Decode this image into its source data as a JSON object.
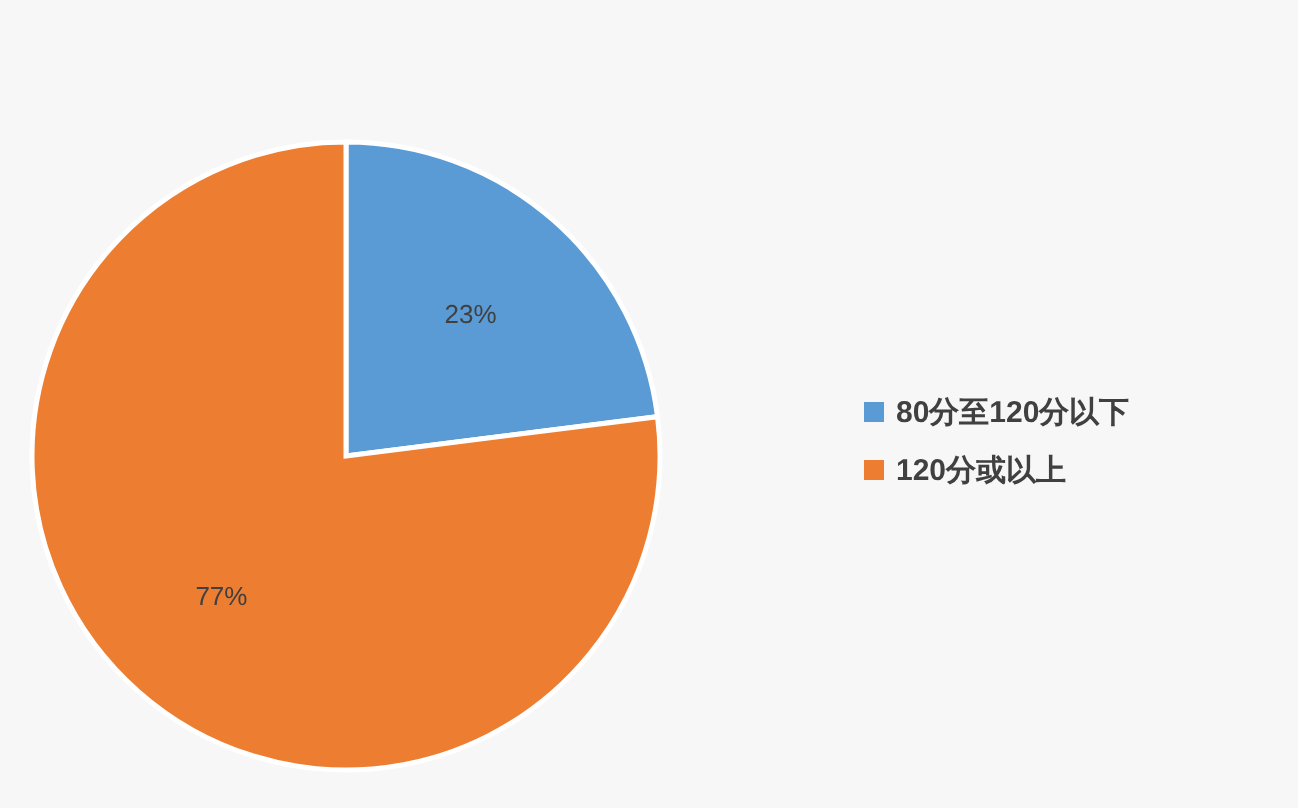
{
  "chart_data": {
    "type": "pie",
    "categories": [
      "80分至120分以下",
      "120分或以上"
    ],
    "values": [
      23,
      77
    ],
    "colors": [
      "#5b9bd5",
      "#ed7d31"
    ],
    "value_labels": [
      "23%",
      "77%"
    ],
    "legend": "right"
  }
}
